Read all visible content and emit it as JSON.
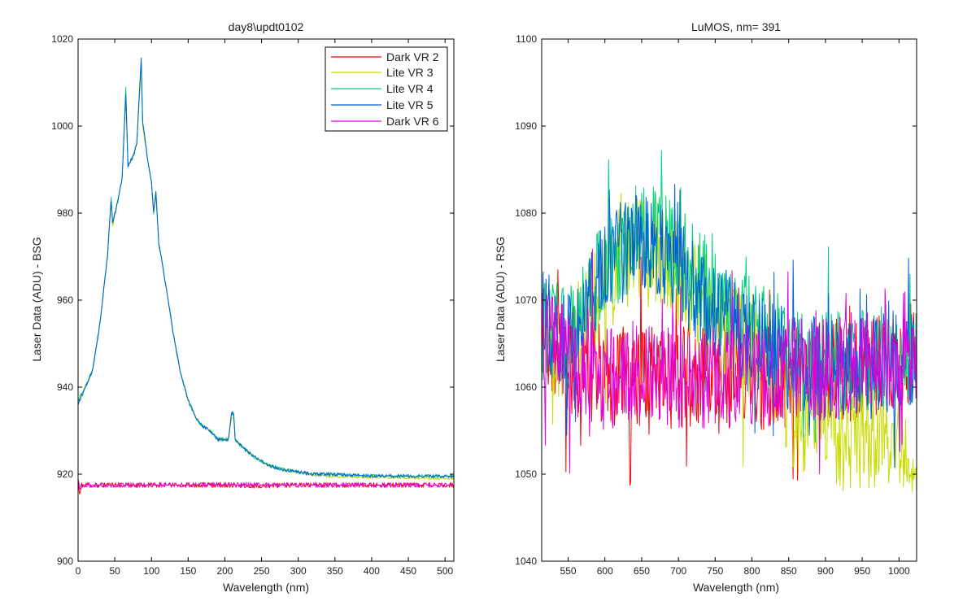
{
  "figure": {
    "background": "#ffffff",
    "axes_color": "#000000"
  },
  "chart_data": [
    {
      "type": "line",
      "title": "day8\\updt0102",
      "xlabel": "Wavelength (nm)",
      "ylabel": "Laser Data (ADU) - BSG",
      "xlim": [
        0,
        512
      ],
      "ylim": [
        900,
        1020
      ],
      "xticks": [
        0,
        50,
        100,
        150,
        200,
        250,
        300,
        350,
        400,
        450,
        500
      ],
      "yticks": [
        900,
        920,
        940,
        960,
        980,
        1000,
        1020
      ],
      "grid": false,
      "legend_position": "top-right",
      "series": [
        {
          "name": "Dark VR 2",
          "color": "#ff0000",
          "profile": "flat",
          "points": [
            [
              0,
              919
            ],
            [
              2,
              915
            ],
            [
              4,
              917.5
            ],
            [
              100,
              917.5
            ],
            [
              200,
              917.5
            ],
            [
              250,
              917.3
            ],
            [
              300,
              917.5
            ],
            [
              400,
              917.5
            ],
            [
              512,
              917.5
            ]
          ],
          "jitter": 0.7
        },
        {
          "name": "Lite VR 3",
          "color": "#c8dc00",
          "profile": "peak",
          "points": [
            [
              0,
              937
            ],
            [
              10,
              940
            ],
            [
              20,
              944
            ],
            [
              30,
              955
            ],
            [
              40,
              970
            ],
            [
              45,
              983
            ],
            [
              47,
              977
            ],
            [
              52,
              981
            ],
            [
              60,
              988
            ],
            [
              65,
              1008
            ],
            [
              68,
              991
            ],
            [
              75,
              993
            ],
            [
              80,
              996
            ],
            [
              86,
              1014
            ],
            [
              88,
              1000
            ],
            [
              95,
              992
            ],
            [
              100,
              987
            ],
            [
              103,
              980
            ],
            [
              106,
              984
            ],
            [
              110,
              973
            ],
            [
              120,
              963
            ],
            [
              130,
              952
            ],
            [
              140,
              943
            ],
            [
              150,
              937
            ],
            [
              160,
              933
            ],
            [
              170,
              931
            ],
            [
              180,
              930
            ],
            [
              190,
              928
            ],
            [
              200,
              928
            ],
            [
              205,
              928
            ],
            [
              209,
              933
            ],
            [
              212,
              933
            ],
            [
              214,
              928
            ],
            [
              225,
              926
            ],
            [
              240,
              924
            ],
            [
              260,
              922
            ],
            [
              280,
              921
            ],
            [
              300,
              920.5
            ],
            [
              320,
              920
            ],
            [
              340,
              919.5
            ],
            [
              400,
              919.3
            ],
            [
              512,
              919
            ]
          ],
          "jitter": 0.4
        },
        {
          "name": "Lite VR 4",
          "color": "#00d07a",
          "profile": "peak",
          "points": [
            [
              0,
              937
            ],
            [
              10,
              940
            ],
            [
              20,
              944
            ],
            [
              30,
              955
            ],
            [
              40,
              970
            ],
            [
              45,
              984
            ],
            [
              47,
              978
            ],
            [
              52,
              981
            ],
            [
              60,
              988
            ],
            [
              65,
              1009
            ],
            [
              68,
              991
            ],
            [
              75,
              993
            ],
            [
              80,
              996
            ],
            [
              86,
              1015
            ],
            [
              88,
              1001
            ],
            [
              95,
              992
            ],
            [
              100,
              987
            ],
            [
              103,
              980
            ],
            [
              106,
              985
            ],
            [
              110,
              973
            ],
            [
              120,
              963
            ],
            [
              130,
              952
            ],
            [
              140,
              943
            ],
            [
              150,
              937
            ],
            [
              160,
              933
            ],
            [
              170,
              931
            ],
            [
              180,
              930
            ],
            [
              190,
              928
            ],
            [
              200,
              928
            ],
            [
              205,
              928
            ],
            [
              209,
              934
            ],
            [
              212,
              934
            ],
            [
              214,
              928
            ],
            [
              225,
              926
            ],
            [
              240,
              924
            ],
            [
              260,
              922
            ],
            [
              280,
              921
            ],
            [
              300,
              920.5
            ],
            [
              320,
              920
            ],
            [
              340,
              920
            ],
            [
              400,
              919.6
            ],
            [
              512,
              919.5
            ]
          ],
          "jitter": 0.5
        },
        {
          "name": "Lite VR 5",
          "color": "#0060d8",
          "profile": "peak",
          "points": [
            [
              0,
              936
            ],
            [
              10,
              940
            ],
            [
              20,
              944
            ],
            [
              30,
              955
            ],
            [
              40,
              970
            ],
            [
              45,
              983
            ],
            [
              47,
              978
            ],
            [
              52,
              981
            ],
            [
              60,
              988
            ],
            [
              65,
              1007
            ],
            [
              68,
              991
            ],
            [
              75,
              993
            ],
            [
              80,
              996
            ],
            [
              86,
              1016
            ],
            [
              88,
              1001
            ],
            [
              95,
              992
            ],
            [
              100,
              987
            ],
            [
              103,
              980
            ],
            [
              106,
              985
            ],
            [
              110,
              973
            ],
            [
              120,
              963
            ],
            [
              130,
              952
            ],
            [
              140,
              943
            ],
            [
              150,
              937
            ],
            [
              160,
              933
            ],
            [
              170,
              931
            ],
            [
              180,
              930
            ],
            [
              190,
              928
            ],
            [
              200,
              928
            ],
            [
              205,
              928
            ],
            [
              209,
              934
            ],
            [
              212,
              934
            ],
            [
              214,
              928
            ],
            [
              225,
              926
            ],
            [
              240,
              924
            ],
            [
              260,
              922
            ],
            [
              280,
              921
            ],
            [
              300,
              920.5
            ],
            [
              320,
              920
            ],
            [
              340,
              920
            ],
            [
              400,
              919.6
            ],
            [
              512,
              919.5
            ]
          ],
          "jitter": 0.5
        },
        {
          "name": "Dark VR 6",
          "color": "#e000e0",
          "profile": "flat",
          "points": [
            [
              0,
              918.5
            ],
            [
              3,
              916.5
            ],
            [
              5,
              917.5
            ],
            [
              100,
              917.5
            ],
            [
              200,
              917.6
            ],
            [
              300,
              917.5
            ],
            [
              400,
              917.5
            ],
            [
              512,
              917.5
            ]
          ],
          "jitter": 0.7
        }
      ]
    },
    {
      "type": "line",
      "title": "LuMOS, nm= 391",
      "xlabel": "Wavelength (nm)",
      "ylabel": "Laser Data (ADU) - RSG",
      "xlim": [
        514,
        1024
      ],
      "ylim": [
        1040,
        1100
      ],
      "xticks": [
        550,
        600,
        650,
        700,
        750,
        800,
        850,
        900,
        950,
        1000
      ],
      "yticks": [
        1040,
        1050,
        1060,
        1070,
        1080,
        1090,
        1100
      ],
      "grid": false,
      "series": [
        {
          "name": "Dark VR 2",
          "color": "#ff0000",
          "points": [
            [
              514,
              1067
            ],
            [
              550,
              1063
            ],
            [
              600,
              1061
            ],
            [
              650,
              1061
            ],
            [
              700,
              1061
            ],
            [
              750,
              1061
            ],
            [
              800,
              1061
            ],
            [
              850,
              1061
            ],
            [
              900,
              1062
            ],
            [
              950,
              1062
            ],
            [
              1000,
              1063
            ],
            [
              1024,
              1064
            ]
          ],
          "jitter": 6
        },
        {
          "name": "Lite VR 3",
          "color": "#c8dc00",
          "points": [
            [
              514,
              1066
            ],
            [
              550,
              1064
            ],
            [
              600,
              1072
            ],
            [
              650,
              1077
            ],
            [
              700,
              1073
            ],
            [
              750,
              1068
            ],
            [
              800,
              1064
            ],
            [
              840,
              1060
            ],
            [
              860,
              1056
            ],
            [
              900,
              1055
            ],
            [
              950,
              1054
            ],
            [
              1000,
              1054
            ],
            [
              1024,
              1053
            ]
          ],
          "jitter": 6
        },
        {
          "name": "Lite VR 4",
          "color": "#00d07a",
          "points": [
            [
              514,
              1068
            ],
            [
              550,
              1065
            ],
            [
              600,
              1074
            ],
            [
              650,
              1078
            ],
            [
              700,
              1075
            ],
            [
              750,
              1070
            ],
            [
              800,
              1067
            ],
            [
              850,
              1064
            ],
            [
              900,
              1063
            ],
            [
              950,
              1063
            ],
            [
              1000,
              1064
            ],
            [
              1024,
              1064
            ]
          ],
          "jitter": 6
        },
        {
          "name": "Lite VR 5",
          "color": "#0060d8",
          "points": [
            [
              514,
              1068
            ],
            [
              550,
              1065
            ],
            [
              600,
              1074
            ],
            [
              650,
              1077
            ],
            [
              700,
              1074
            ],
            [
              750,
              1069
            ],
            [
              800,
              1066
            ],
            [
              850,
              1063
            ],
            [
              900,
              1062
            ],
            [
              950,
              1062
            ],
            [
              1000,
              1063
            ],
            [
              1024,
              1064
            ]
          ],
          "jitter": 6
        },
        {
          "name": "Dark VR 6",
          "color": "#e000e0",
          "points": [
            [
              514,
              1066
            ],
            [
              550,
              1063
            ],
            [
              600,
              1061
            ],
            [
              650,
              1061
            ],
            [
              700,
              1061
            ],
            [
              750,
              1061
            ],
            [
              800,
              1061
            ],
            [
              850,
              1062
            ],
            [
              900,
              1062
            ],
            [
              950,
              1063
            ],
            [
              1000,
              1063
            ],
            [
              1024,
              1063
            ]
          ],
          "jitter": 6
        }
      ]
    }
  ]
}
